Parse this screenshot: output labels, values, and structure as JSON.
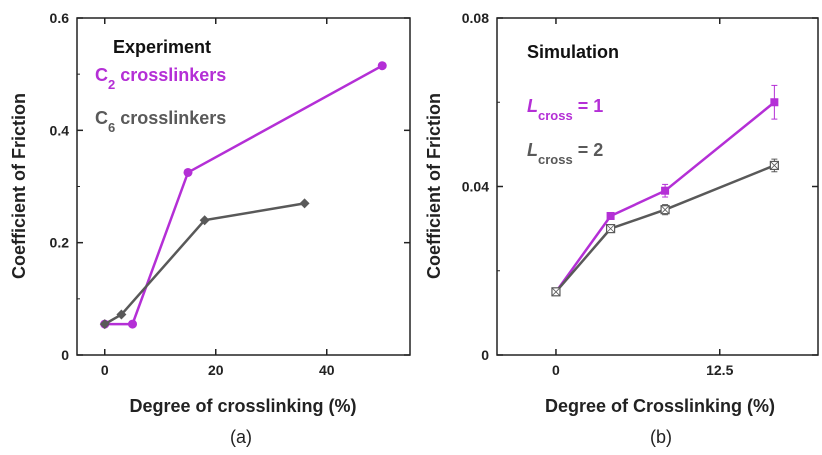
{
  "colors": {
    "c2": "#b42fd6",
    "c6": "#595959"
  },
  "chart_data": [
    {
      "type": "line",
      "legend_title": "Experiment",
      "xlabel": "Degree of crosslinking (%)",
      "ylabel": "Coefficient of Friction",
      "xlim": [
        -5,
        55
      ],
      "ylim": [
        0,
        0.6
      ],
      "xticks": [
        0,
        20,
        40
      ],
      "xtick_labels": [
        "0",
        "20",
        "40"
      ],
      "yticks": [
        0,
        0.2,
        0.4,
        0.6
      ],
      "ytick_labels": [
        "0",
        "0.2",
        "0.4",
        "0.6"
      ],
      "series": [
        {
          "name": "C2 crosslinkers",
          "prefix": "C",
          "subscript": "2",
          "suffix": " crosslinkers",
          "color": "#b42fd6",
          "marker": "circle",
          "x": [
            0,
            5,
            15,
            50
          ],
          "y": [
            0.055,
            0.055,
            0.325,
            0.515
          ]
        },
        {
          "name": "C6 crosslinkers",
          "prefix": "C",
          "subscript": "6",
          "suffix": " crosslinkers",
          "color": "#595959",
          "marker": "diamond",
          "x": [
            0,
            3,
            18,
            36
          ],
          "y": [
            0.055,
            0.072,
            0.24,
            0.27
          ]
        }
      ],
      "caption": "(a)"
    },
    {
      "type": "line",
      "legend_title": "Simulation",
      "xlabel": "Degree of Crosslinking (%)",
      "ylabel": "Coefficient of Friction",
      "xlim": [
        -4.5,
        20
      ],
      "ylim": [
        0,
        0.08
      ],
      "xticks": [
        0,
        12.5
      ],
      "xtick_labels": [
        "0",
        "12.5"
      ],
      "yticks": [
        0,
        0.04,
        0.08
      ],
      "ytick_labels": [
        "0",
        "0.04",
        "0.08"
      ],
      "series": [
        {
          "name": "Lcross = 1",
          "prefix": "L",
          "subscript": "cross",
          "suffix": " = 1",
          "color": "#b42fd6",
          "marker": "square",
          "x": [
            0,
            4.17,
            8.33,
            16.67
          ],
          "y": [
            0.015,
            0.033,
            0.039,
            0.06
          ],
          "err": [
            0.0006,
            0.0006,
            0.0015,
            0.004
          ]
        },
        {
          "name": "Lcross = 2",
          "prefix": "L",
          "subscript": "cross",
          "suffix": " = 2",
          "color": "#595959",
          "marker": "open-square",
          "x": [
            0,
            4.17,
            8.33,
            16.67
          ],
          "y": [
            0.015,
            0.03,
            0.0345,
            0.045
          ],
          "err": [
            0.0006,
            0.0006,
            0.0012,
            0.0015
          ]
        }
      ],
      "caption": "(b)"
    }
  ]
}
